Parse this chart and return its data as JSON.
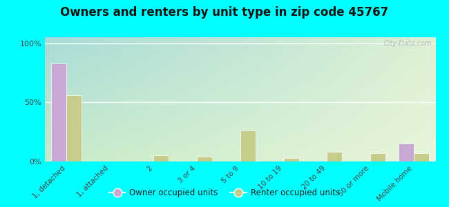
{
  "title": "Owners and renters by unit type in zip code 45767",
  "categories": [
    "1, detached",
    "1, attached",
    "2",
    "3 or 4",
    "5 to 9",
    "10 to 19",
    "20 to 49",
    "50 or more",
    "Mobile home"
  ],
  "owner_values": [
    83,
    0,
    0,
    0,
    0,
    0,
    0,
    0,
    15
  ],
  "renter_values": [
    56,
    0,
    5,
    4,
    26,
    3,
    8,
    7,
    7
  ],
  "owner_color": "#c9a8d4",
  "renter_color": "#c8cc8a",
  "bg_outer": "#00ffff",
  "ylabel_ticks": [
    "0%",
    "50%",
    "100%"
  ],
  "ytick_vals": [
    0,
    50,
    100
  ],
  "ylim": [
    0,
    105
  ],
  "legend_owner": "Owner occupied units",
  "legend_renter": "Renter occupied units",
  "watermark": "City-Data.com",
  "grad_topleft": "#a8dcd9",
  "grad_bottomright": "#e8f5dc"
}
